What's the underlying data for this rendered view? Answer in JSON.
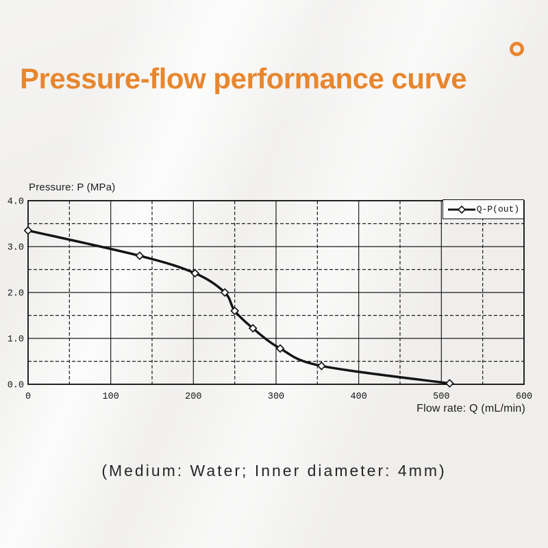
{
  "page": {
    "title": "Pressure-flow performance curve",
    "caption": "(Medium: Water; Inner diameter: 4mm)",
    "accent_color": "#E8862E",
    "background_color": "#EFEEEC"
  },
  "chart_data": {
    "type": "line",
    "title": "",
    "xlabel": "Flow rate: Q (mL/min)",
    "ylabel": "Pressure: P (MPa)",
    "xlim": [
      0,
      600
    ],
    "ylim": [
      0,
      4
    ],
    "x_tick_labels": [
      "0",
      "100",
      "200",
      "300",
      "400",
      "500",
      "600"
    ],
    "x_major_ticks": [
      0,
      100,
      200,
      300,
      400,
      500,
      600
    ],
    "x_minor_ticks": [
      50,
      150,
      250,
      350,
      450,
      550
    ],
    "y_tick_labels": [
      "0.0",
      "1.0",
      "2.0",
      "3.0",
      "4.0"
    ],
    "y_major_ticks": [
      0,
      1,
      2,
      3,
      4
    ],
    "y_minor_ticks": [
      0.5,
      1.5,
      2.5,
      3.5
    ],
    "grid": "major solid, minor dashed",
    "legend_position": "top-right",
    "line_color": "#141414",
    "series": [
      {
        "name": "Q-P(out)",
        "marker": "diamond",
        "points": [
          [
            0,
            3.35
          ],
          [
            135,
            2.8
          ],
          [
            202,
            2.42
          ],
          [
            238,
            2.0
          ],
          [
            250,
            1.6
          ],
          [
            272,
            1.22
          ],
          [
            305,
            0.78
          ],
          [
            355,
            0.4
          ],
          [
            510,
            0.02
          ]
        ]
      }
    ]
  }
}
